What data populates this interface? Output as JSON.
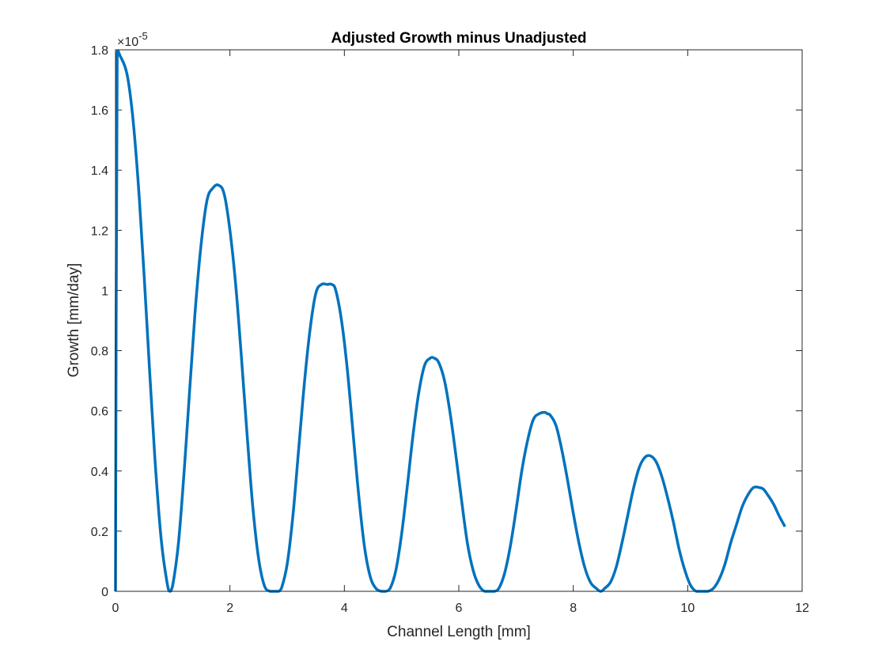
{
  "chart_data": {
    "type": "line",
    "title": "Adjusted Growth minus Unadjusted",
    "xlabel": "Channel Length [mm]",
    "ylabel": "Growth [mm/day]",
    "y_exponent_base": "×10",
    "y_exponent_power": "-5",
    "xlim": [
      0,
      12
    ],
    "ylim": [
      0,
      1.8
    ],
    "xticks": [
      0,
      2,
      4,
      6,
      8,
      10,
      12
    ],
    "xtick_labels": [
      "0",
      "2",
      "4",
      "6",
      "8",
      "10",
      "12"
    ],
    "yticks": [
      0,
      0.2,
      0.4,
      0.6,
      0.8,
      1.0,
      1.2,
      1.4,
      1.6,
      1.8
    ],
    "ytick_labels": [
      "0",
      "0.2",
      "0.4",
      "0.6",
      "0.8",
      "1",
      "1.2",
      "1.4",
      "1.6",
      "1.8"
    ],
    "grid": false,
    "legend": "none",
    "series": [
      {
        "color": "#0072BD",
        "x": [
          0,
          0.03,
          0.08,
          0.2,
          0.3,
          0.4,
          0.5,
          0.6,
          0.7,
          0.8,
          0.9,
          0.95,
          1.0,
          1.1,
          1.2,
          1.3,
          1.4,
          1.5,
          1.6,
          1.7,
          1.8,
          1.9,
          2.0,
          2.1,
          2.2,
          2.3,
          2.4,
          2.5,
          2.6,
          2.7,
          2.8,
          2.85,
          2.9,
          3.0,
          3.1,
          3.2,
          3.3,
          3.4,
          3.5,
          3.6,
          3.7,
          3.78,
          3.85,
          3.95,
          4.05,
          4.15,
          4.25,
          4.35,
          4.45,
          4.55,
          4.65,
          4.72,
          4.8,
          4.9,
          5.0,
          5.1,
          5.2,
          5.3,
          5.4,
          5.5,
          5.57,
          5.65,
          5.75,
          5.85,
          5.95,
          6.05,
          6.15,
          6.25,
          6.35,
          6.45,
          6.55,
          6.62,
          6.7,
          6.8,
          6.9,
          7.0,
          7.1,
          7.2,
          7.3,
          7.4,
          7.5,
          7.55,
          7.6,
          7.7,
          7.8,
          7.9,
          8.0,
          8.1,
          8.2,
          8.3,
          8.4,
          8.48,
          8.55,
          8.65,
          8.75,
          8.85,
          8.95,
          9.05,
          9.15,
          9.25,
          9.35,
          9.45,
          9.55,
          9.65,
          9.75,
          9.85,
          9.95,
          10.05,
          10.15,
          10.25,
          10.35,
          10.45,
          10.55,
          10.65,
          10.75,
          10.85,
          10.95,
          11.05,
          11.15,
          11.25,
          11.32,
          11.4,
          11.5,
          11.6,
          11.7
        ],
        "y": [
          0,
          1.79,
          1.78,
          1.72,
          1.58,
          1.35,
          1.05,
          0.72,
          0.41,
          0.17,
          0.03,
          0.0,
          0.02,
          0.16,
          0.4,
          0.68,
          0.95,
          1.16,
          1.3,
          1.34,
          1.35,
          1.32,
          1.2,
          1.02,
          0.78,
          0.52,
          0.28,
          0.11,
          0.02,
          0.0,
          0.0,
          0.0,
          0.01,
          0.09,
          0.25,
          0.47,
          0.69,
          0.87,
          0.99,
          1.02,
          1.02,
          1.02,
          1.0,
          0.9,
          0.74,
          0.53,
          0.32,
          0.15,
          0.05,
          0.01,
          0.0,
          0.0,
          0.01,
          0.07,
          0.19,
          0.35,
          0.52,
          0.66,
          0.75,
          0.775,
          0.775,
          0.76,
          0.7,
          0.59,
          0.45,
          0.3,
          0.16,
          0.07,
          0.02,
          0.0,
          0.0,
          0.0,
          0.01,
          0.06,
          0.15,
          0.27,
          0.4,
          0.5,
          0.57,
          0.59,
          0.595,
          0.59,
          0.585,
          0.55,
          0.47,
          0.37,
          0.26,
          0.16,
          0.08,
          0.03,
          0.01,
          0.0,
          0.01,
          0.03,
          0.08,
          0.16,
          0.25,
          0.34,
          0.41,
          0.445,
          0.45,
          0.43,
          0.38,
          0.31,
          0.23,
          0.14,
          0.07,
          0.02,
          0.0,
          0.0,
          0.0,
          0.01,
          0.04,
          0.09,
          0.16,
          0.22,
          0.28,
          0.32,
          0.345,
          0.345,
          0.34,
          0.32,
          0.29,
          0.25,
          0.215
        ]
      }
    ]
  }
}
